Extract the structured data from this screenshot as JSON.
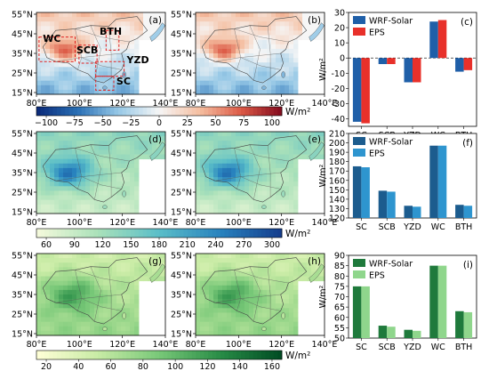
{
  "maps": {
    "lat_ticks": [
      "55°N",
      "45°N",
      "35°N",
      "25°N",
      "15°N"
    ],
    "lon_ticks": [
      "80°E",
      "100°E",
      "120°E",
      "140°E"
    ],
    "panels": [
      {
        "tag": "(a)",
        "scheme": "diverge",
        "regions": [
          "WC",
          "SCB",
          "BTH",
          "YZD",
          "SC"
        ]
      },
      {
        "tag": "(b)",
        "scheme": "diverge"
      },
      {
        "tag": "(d)",
        "scheme": "blue"
      },
      {
        "tag": "(e)",
        "scheme": "blue"
      },
      {
        "tag": "(g)",
        "scheme": "green"
      },
      {
        "tag": "(h)",
        "scheme": "green"
      }
    ]
  },
  "colorbars": [
    {
      "ticks": [
        "−100",
        "−75",
        "−50",
        "−25",
        "0",
        "25",
        "50",
        "75",
        "100"
      ],
      "unit": "W/m²"
    },
    {
      "ticks": [
        "60",
        "90",
        "120",
        "150",
        "180",
        "210",
        "240",
        "270",
        "300"
      ],
      "unit": "W/m²"
    },
    {
      "ticks": [
        "20",
        "40",
        "60",
        "80",
        "100",
        "120",
        "140",
        "160"
      ],
      "unit": "W/m²"
    }
  ],
  "chart_data": [
    {
      "type": "bar",
      "tag": "(c)",
      "categories": [
        "SC",
        "SCB",
        "YZD",
        "WC",
        "BTH"
      ],
      "series": [
        {
          "name": "WRF-Solar",
          "color": "#1f5fa8",
          "values": [
            -42,
            -4,
            -16,
            24,
            -9
          ]
        },
        {
          "name": "EPS",
          "color": "#e8302a",
          "values": [
            -43,
            -4,
            -16,
            25,
            -8
          ]
        }
      ],
      "ylabel": "W/m²",
      "ylim": [
        -45,
        30
      ],
      "yticks": [
        30,
        20,
        10,
        0,
        -10,
        -20,
        -30,
        -40
      ],
      "zero_dashed": true,
      "legend": "top-left"
    },
    {
      "type": "bar",
      "tag": "(f)",
      "categories": [
        "SC",
        "SCB",
        "YZD",
        "WC",
        "BTH"
      ],
      "series": [
        {
          "name": "WRF-Solar",
          "color": "#1c5c8e",
          "values": [
            175,
            149,
            133,
            197,
            134
          ]
        },
        {
          "name": "EPS",
          "color": "#2e95cf",
          "values": [
            174,
            148,
            132,
            197,
            133
          ]
        }
      ],
      "ylabel": "W/m²",
      "ylim": [
        120,
        210
      ],
      "yticks": [
        210,
        200,
        190,
        180,
        170,
        160,
        150,
        140,
        130,
        120
      ],
      "legend": "top-left"
    },
    {
      "type": "bar",
      "tag": "(i)",
      "categories": [
        "SC",
        "SCB",
        "YZD",
        "WC",
        "BTH"
      ],
      "series": [
        {
          "name": "WRF-Solar",
          "color": "#1f7a3c",
          "values": [
            75,
            56,
            54,
            85,
            63
          ]
        },
        {
          "name": "EPS",
          "color": "#8fd68c",
          "values": [
            75,
            55.5,
            53.5,
            85,
            62.5
          ]
        }
      ],
      "ylabel": "W/m²",
      "ylim": [
        50,
        90
      ],
      "yticks": [
        90,
        85,
        80,
        75,
        70,
        65,
        60,
        55,
        50
      ],
      "legend": "top-left"
    }
  ]
}
